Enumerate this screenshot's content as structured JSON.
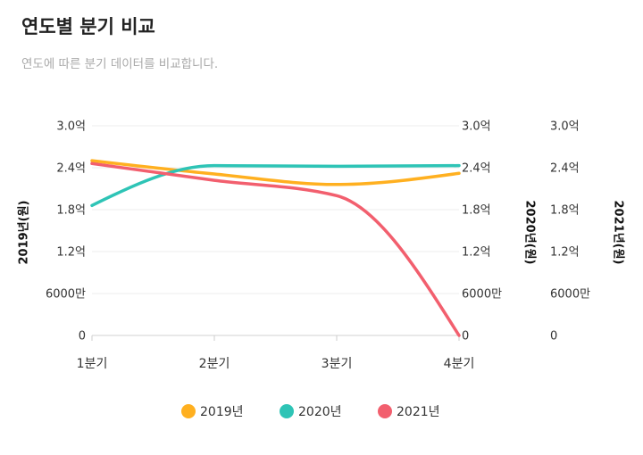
{
  "header": {
    "title": "연도별 분기 비교",
    "subtitle": "연도에 따른 분기 데이터를 비교합니다."
  },
  "chart_data": {
    "type": "line",
    "curve": "smooth",
    "categories": [
      "1분기",
      "2분기",
      "3분기",
      "4분기"
    ],
    "series": [
      {
        "name": "2019년",
        "color": "#FFB020",
        "axis": "y1",
        "values": [
          250000000,
          231000000,
          216000000,
          232000000
        ]
      },
      {
        "name": "2020년",
        "color": "#2EC4B6",
        "axis": "y2",
        "values": [
          186000000,
          243000000,
          242000000,
          243000000
        ]
      },
      {
        "name": "2021년",
        "color": "#F25F6E",
        "axis": "y3",
        "values": [
          246000000,
          222000000,
          200000000,
          0
        ]
      }
    ],
    "y_axes": [
      {
        "id": "y1",
        "label": "2019년(원)",
        "ticks": [
          "0",
          "6000만",
          "1.2억",
          "1.8억",
          "2.4억",
          "3.0억"
        ]
      },
      {
        "id": "y2",
        "label": "2020년(원)",
        "ticks": [
          "0",
          "6000만",
          "1.2억",
          "1.8억",
          "2.4억",
          "3.0억"
        ]
      },
      {
        "id": "y3",
        "label": "2021년(원)",
        "ticks": [
          "0",
          "6000만",
          "1.2억",
          "1.8억",
          "2.4억",
          "3.0억"
        ]
      }
    ],
    "ylim": [
      0,
      300000000
    ],
    "grid": true,
    "legend_position": "bottom-center"
  }
}
